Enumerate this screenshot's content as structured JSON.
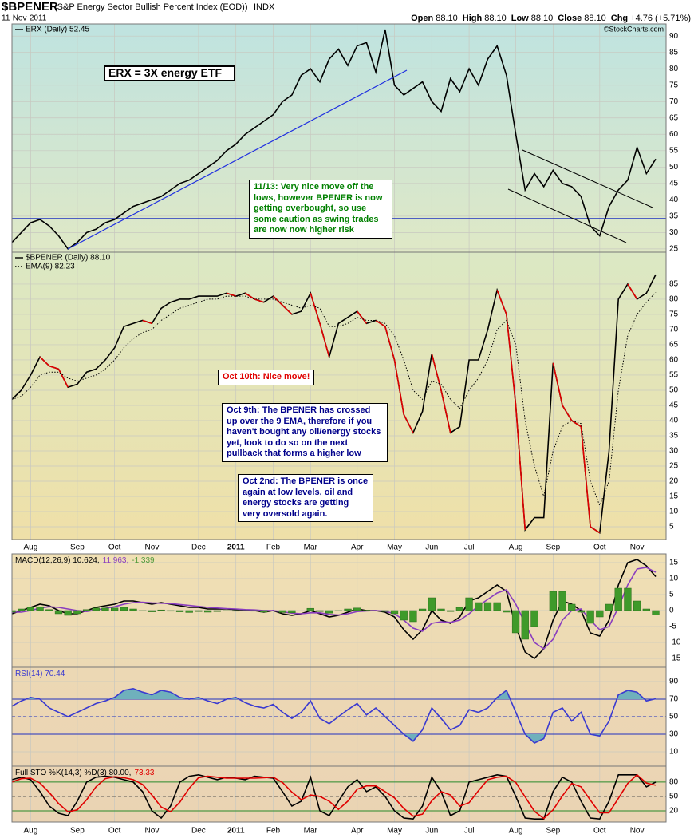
{
  "header": {
    "symbol": "$BPENER",
    "description": "(S&P Energy Sector Bullish Percent Index (EOD))",
    "exchange": "INDX",
    "date": "11-Nov-2011",
    "quote": [
      {
        "label": "Open",
        "value": "88.10"
      },
      {
        "label": "High",
        "value": "88.10"
      },
      {
        "label": "Low",
        "value": "88.10"
      },
      {
        "label": "Close",
        "value": "88.10"
      },
      {
        "label": "Chg",
        "value": "+4.76 (+5.71%)"
      }
    ],
    "watermark": "©StockCharts.com"
  },
  "chart_data": [
    {
      "type": "line",
      "ylim": [
        24,
        93.7
      ],
      "yticks": [
        25,
        30,
        35,
        40,
        45,
        50,
        55,
        60,
        65,
        70,
        75,
        80,
        85,
        90
      ],
      "reference_lines": [
        {
          "value": 34.3,
          "color": "#2030c0",
          "dash": false
        }
      ],
      "series": [
        {
          "name": "ERX (Daily) 52.45",
          "color": "#000000",
          "style": "solid",
          "values": [
            27,
            30,
            33,
            34,
            32,
            29,
            25,
            27,
            30,
            31,
            33,
            34,
            36,
            38,
            39,
            40,
            41,
            43,
            45,
            46,
            48,
            50,
            52,
            55,
            57,
            60,
            62,
            64,
            66,
            70,
            72,
            78,
            80,
            76,
            83,
            86,
            81,
            87,
            88,
            79,
            92,
            75,
            72,
            74,
            76,
            70,
            67,
            77,
            73,
            80,
            75,
            83,
            87,
            78,
            60,
            43,
            48,
            44,
            49,
            45,
            44,
            41,
            32,
            29,
            38,
            43,
            46,
            56,
            48,
            52.45
          ]
        }
      ],
      "annotations": [
        {
          "text": "ERX = 3X energy ETF",
          "color": "#000000"
        },
        {
          "text": "11/13: Very nice move off the lows, however BPENER is now getting overbought, so use some caution as swing trades are now now higher risk",
          "color": "#008000"
        }
      ]
    },
    {
      "type": "line",
      "ylim": [
        0.8,
        95.5
      ],
      "yticks": [
        5,
        10,
        15,
        20,
        25,
        30,
        35,
        40,
        45,
        50,
        55,
        60,
        65,
        70,
        75,
        80,
        85
      ],
      "categories": [
        null,
        null,
        "Aug",
        null,
        null,
        null,
        null,
        "Sep",
        null,
        null,
        null,
        "Oct",
        null,
        null,
        null,
        "Nov",
        null,
        null,
        null,
        null,
        "Dec",
        null,
        null,
        null,
        "2011",
        null,
        null,
        null,
        "Feb",
        null,
        null,
        null,
        "Mar",
        null,
        null,
        null,
        null,
        "Apr",
        null,
        null,
        null,
        "May",
        null,
        null,
        null,
        "Jun",
        null,
        null,
        null,
        "Jul",
        null,
        null,
        null,
        null,
        "Aug",
        null,
        null,
        null,
        "Sep",
        null,
        null,
        null,
        null,
        "Oct",
        null,
        null,
        null,
        "Nov",
        null,
        null
      ],
      "series": [
        {
          "name": "$BPENER (Daily) 88.10",
          "color": "#000000",
          "down_color": "#e00000",
          "style": "solid",
          "values": [
            47,
            50,
            55,
            61,
            58,
            57,
            51,
            52,
            56,
            57,
            60,
            64,
            71,
            72,
            73,
            72,
            77,
            79,
            80,
            80,
            81,
            81,
            81,
            82,
            81,
            82,
            80,
            79,
            81,
            78,
            75,
            76,
            82,
            72,
            61,
            72,
            74,
            76,
            72,
            73,
            71,
            60,
            42,
            36,
            43,
            62,
            50,
            36,
            38,
            60,
            60,
            70,
            83,
            75,
            45,
            4,
            8,
            8,
            59,
            45,
            40,
            38,
            5,
            3,
            30,
            80,
            85,
            80,
            82,
            88.1
          ]
        },
        {
          "name": "EMA(9) 82.23",
          "color": "#000000",
          "style": "dotted",
          "values": [
            47,
            48,
            51,
            55,
            56,
            56,
            54,
            53,
            54,
            55,
            57,
            60,
            64,
            67,
            69,
            70,
            73,
            75,
            77,
            78,
            79,
            80,
            80,
            81,
            81,
            81,
            80,
            80,
            80,
            79,
            78,
            77,
            78,
            77,
            71,
            71,
            72,
            74,
            73,
            73,
            72,
            68,
            60,
            50,
            47,
            53,
            52,
            47,
            44,
            50,
            54,
            60,
            70,
            73,
            65,
            40,
            25,
            15,
            30,
            38,
            40,
            39,
            20,
            12,
            20,
            50,
            68,
            75,
            79,
            82.23
          ]
        }
      ],
      "annotations": [
        {
          "text": "Oct 10th: Nice move!",
          "color": "#e00000"
        },
        {
          "text": "Oct 9th: The BPENER has crossed up over the 9 EMA, therefore if you haven't bought any oil/energy stocks yet, look to do so on the next pullback that forms a higher low",
          "color": "#00008b"
        },
        {
          "text": "Oct 2nd: The BPENER is once again at low levels, oil and energy stocks are getting very oversold again.",
          "color": "#00008b"
        }
      ]
    },
    {
      "type": "line",
      "ylim": [
        -17.75,
        17.75
      ],
      "yticks": [
        15,
        10,
        5,
        0,
        -5,
        -10,
        -15
      ],
      "series": [
        {
          "name": "MACD(12,26,9) 10.624,",
          "color": "#000000",
          "style": "solid",
          "values": [
            -1,
            0,
            1,
            2,
            1.5,
            0,
            -1,
            -1,
            0,
            1,
            1.5,
            2,
            3,
            3,
            2.5,
            2,
            2.5,
            2,
            1.5,
            1,
            1,
            0.5,
            0.5,
            0.5,
            0.3,
            0.2,
            0,
            -0.5,
            0,
            -1,
            -1.5,
            -1,
            0,
            -1,
            -2,
            -1.5,
            -0.5,
            0.5,
            0,
            0,
            -0.5,
            -2,
            -6,
            -9,
            -6,
            0,
            -3,
            -4,
            -2,
            3,
            4,
            6,
            8,
            6,
            -5,
            -13,
            -15,
            -12,
            -3,
            3,
            2,
            0,
            -7,
            -8,
            -3,
            8,
            15,
            16,
            14,
            10.624
          ]
        },
        {
          "name": "11.963,",
          "color": "#8a3dbf",
          "style": "solid",
          "values": [
            -0.5,
            -0.5,
            0,
            0.8,
            1.2,
            1,
            0.5,
            0,
            -0.3,
            0.2,
            0.7,
            1.2,
            2,
            2.5,
            2.6,
            2.4,
            2.3,
            2.2,
            1.9,
            1.6,
            1.3,
            1,
            0.8,
            0.6,
            0.5,
            0.3,
            0.2,
            0,
            0,
            -0.4,
            -0.8,
            -1,
            -0.7,
            -0.7,
            -1.2,
            -1.4,
            -1,
            -0.3,
            -0.1,
            0,
            -0.2,
            -1,
            -3,
            -5.5,
            -6.5,
            -4,
            -3.5,
            -3.7,
            -3,
            -1,
            1.5,
            3.5,
            5.5,
            6.5,
            2,
            -4,
            -10,
            -12,
            -9,
            -3,
            0,
            0.5,
            -3,
            -6,
            -5,
            1,
            8,
            13,
            13.5,
            11.963
          ]
        },
        {
          "name": "-1.339",
          "color": "#3f9a2a",
          "style": "histogram",
          "values": [
            -0.5,
            0.5,
            1,
            1.2,
            0.3,
            -1,
            -1.5,
            -1,
            0.3,
            0.8,
            0.8,
            0.8,
            1,
            0.5,
            -0.1,
            -0.4,
            0.2,
            -0.2,
            -0.4,
            -0.6,
            -0.3,
            -0.5,
            -0.3,
            -0.1,
            -0.2,
            -0.1,
            -0.2,
            -0.5,
            0,
            -0.6,
            -0.7,
            0,
            0.7,
            -0.3,
            -0.8,
            -0.1,
            0.5,
            0.8,
            0.1,
            0,
            -0.3,
            -1,
            -3,
            -3.5,
            0.5,
            4,
            0.5,
            -0.3,
            1,
            4,
            2.5,
            2.5,
            2.5,
            -0.5,
            -7,
            -9,
            -5,
            0,
            6,
            6,
            2,
            -0.5,
            -4,
            -2,
            2,
            7,
            7,
            3,
            0.5,
            -1.339
          ]
        }
      ]
    },
    {
      "type": "line",
      "ylim": [
        -6.4,
        106.4
      ],
      "yticks": [
        90,
        70,
        50,
        30,
        10
      ],
      "reference_lines": [
        {
          "value": 70,
          "color": "#2030c0",
          "dash": false
        },
        {
          "value": 50,
          "color": "#2030c0",
          "dash": true
        },
        {
          "value": 30,
          "color": "#2030c0",
          "dash": false
        }
      ],
      "series": [
        {
          "name": "RSI(14) 70.44",
          "color": "#3a3ad0",
          "fill_color": "#6fb0bc",
          "style": "solid",
          "values": [
            62,
            68,
            72,
            70,
            60,
            55,
            50,
            55,
            60,
            65,
            68,
            72,
            80,
            82,
            78,
            75,
            80,
            78,
            72,
            70,
            72,
            68,
            65,
            70,
            72,
            66,
            62,
            60,
            64,
            55,
            48,
            55,
            68,
            48,
            42,
            50,
            58,
            65,
            52,
            60,
            50,
            40,
            30,
            22,
            35,
            60,
            48,
            35,
            40,
            58,
            55,
            60,
            72,
            80,
            55,
            30,
            20,
            25,
            55,
            60,
            45,
            55,
            30,
            28,
            45,
            75,
            80,
            78,
            68,
            70.44
          ]
        }
      ]
    },
    {
      "type": "line",
      "ylim": [
        -3.3,
        113
      ],
      "yticks": [
        80,
        50,
        20
      ],
      "reference_lines": [
        {
          "value": 80,
          "color": "#2a8a2a",
          "dash": false
        },
        {
          "value": 50,
          "color": "#333333",
          "dash": true
        },
        {
          "value": 20,
          "color": "#2a8a2a",
          "dash": false
        }
      ],
      "categories": [
        null,
        null,
        "Aug",
        null,
        null,
        null,
        null,
        "Sep",
        null,
        null,
        null,
        "Oct",
        null,
        null,
        null,
        "Nov",
        null,
        null,
        null,
        null,
        "Dec",
        null,
        null,
        null,
        "2011",
        null,
        null,
        null,
        "Feb",
        null,
        null,
        null,
        "Mar",
        null,
        null,
        null,
        null,
        "Apr",
        null,
        null,
        null,
        "May",
        null,
        null,
        null,
        "Jun",
        null,
        null,
        null,
        "Jul",
        null,
        null,
        null,
        null,
        "Aug",
        null,
        null,
        null,
        "Sep",
        null,
        null,
        null,
        null,
        "Oct",
        null,
        null,
        null,
        "Nov",
        null,
        null
      ],
      "series": [
        {
          "name": "Full STO %K(14,3) %D(3) 80.00,",
          "color": "#000000",
          "style": "solid",
          "values": [
            85,
            90,
            85,
            60,
            30,
            15,
            10,
            40,
            80,
            90,
            92,
            90,
            85,
            80,
            60,
            20,
            5,
            30,
            80,
            92,
            95,
            90,
            85,
            90,
            88,
            85,
            92,
            90,
            88,
            60,
            30,
            40,
            90,
            20,
            10,
            40,
            70,
            85,
            60,
            70,
            50,
            20,
            5,
            3,
            30,
            90,
            60,
            10,
            20,
            80,
            85,
            90,
            95,
            92,
            50,
            5,
            3,
            3,
            60,
            90,
            80,
            40,
            5,
            3,
            40,
            95,
            95,
            95,
            70,
            80
          ]
        },
        {
          "name": "73.33",
          "color": "#e00000",
          "style": "solid",
          "values": [
            80,
            87,
            88,
            78,
            58,
            35,
            18,
            22,
            43,
            70,
            87,
            91,
            89,
            85,
            75,
            53,
            28,
            18,
            38,
            67,
            89,
            92,
            90,
            88,
            88,
            88,
            88,
            89,
            90,
            79,
            59,
            43,
            53,
            50,
            40,
            23,
            40,
            65,
            72,
            72,
            60,
            47,
            25,
            9,
            13,
            41,
            60,
            53,
            30,
            37,
            62,
            85,
            90,
            92,
            79,
            49,
            19,
            4,
            22,
            51,
            77,
            70,
            42,
            16,
            16,
            46,
            77,
            95,
            78,
            73.33
          ]
        }
      ]
    }
  ]
}
